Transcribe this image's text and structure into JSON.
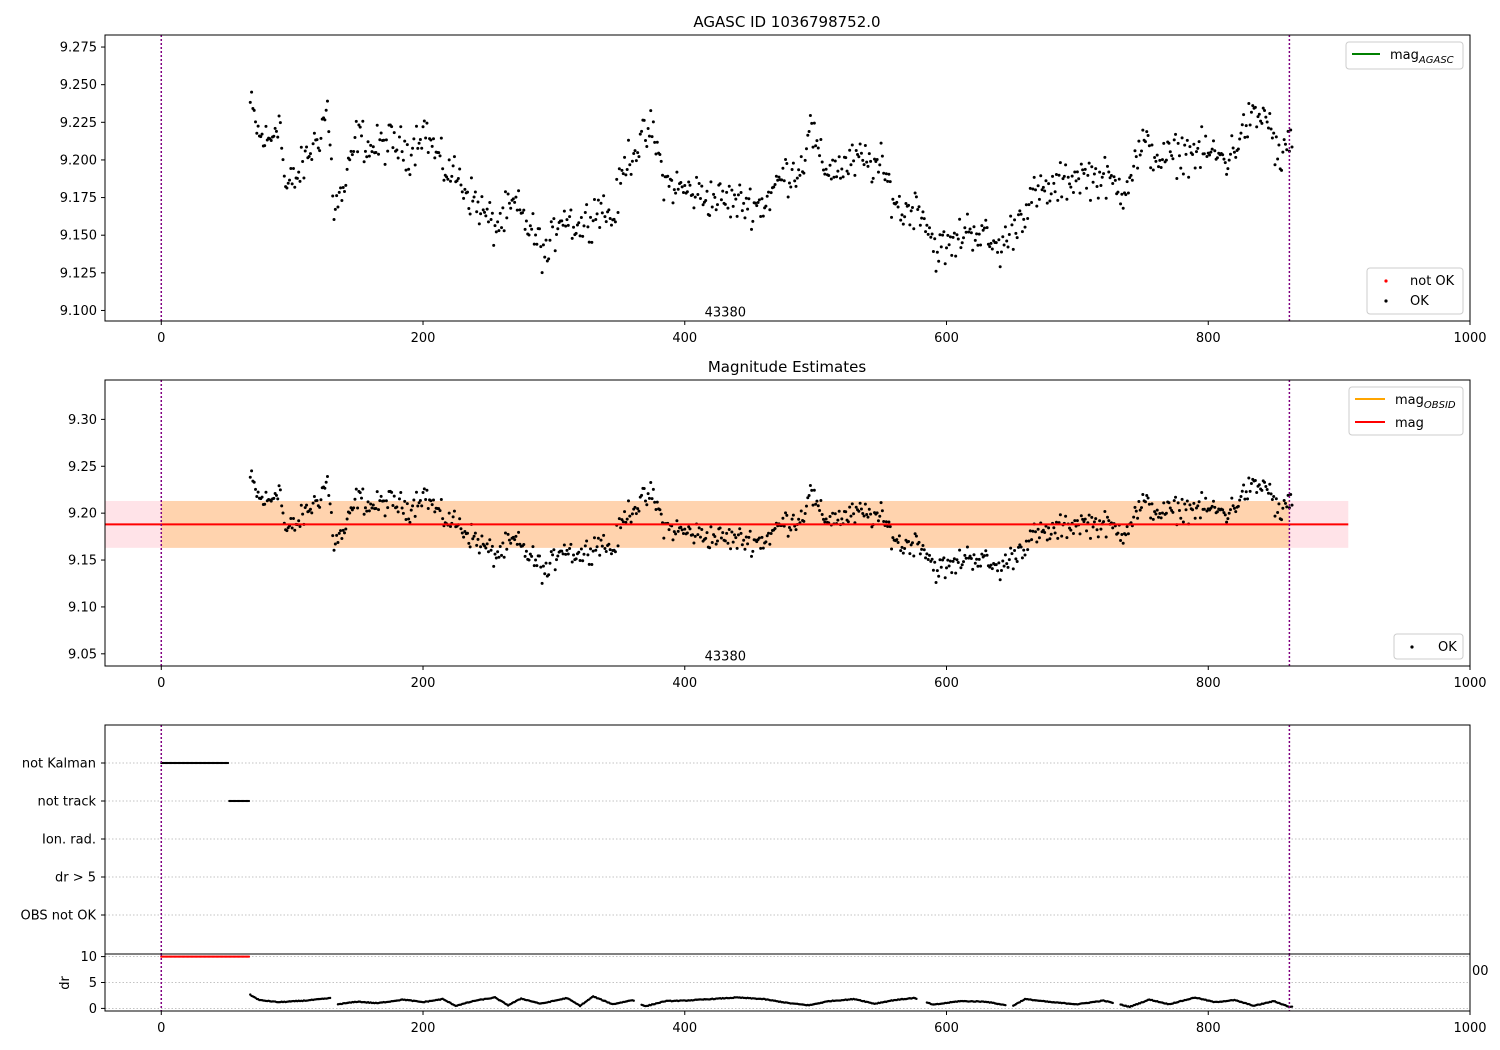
{
  "figure": {
    "background": "#ffffff"
  },
  "chart_data": [
    {
      "type": "scatter",
      "title": "AGASC ID 1036798752.0",
      "xlim": [
        -43,
        1000
      ],
      "ylim": [
        9.093,
        9.283
      ],
      "xticks": [
        "0",
        "200",
        "400",
        "600",
        "800",
        "1000"
      ],
      "xtick_values": [
        0,
        200,
        400,
        600,
        800,
        1000
      ],
      "yticks": [
        "9.100",
        "9.125",
        "9.150",
        "9.175",
        "9.200",
        "9.225",
        "9.250",
        "9.275"
      ],
      "ytick_values": [
        9.1,
        9.125,
        9.15,
        9.175,
        9.2,
        9.225,
        9.25,
        9.275
      ],
      "vlines": [
        0,
        862
      ],
      "vline_color": "#800080",
      "annotation": {
        "text": "43380",
        "x": 431,
        "y": 9.096
      },
      "legend_lines": [
        {
          "label": "mag",
          "sub": "AGASC",
          "color": "#008000"
        }
      ],
      "legend_points": [
        {
          "label": "not OK",
          "color": "#ff0000"
        },
        {
          "label": "OK",
          "color": "#000000"
        }
      ],
      "series_ok": {
        "name": "OK",
        "color": "#000000",
        "knots": [
          [
            68,
            9.237
          ],
          [
            75,
            9.215
          ],
          [
            83,
            9.212
          ],
          [
            90,
            9.23
          ],
          [
            95,
            9.18
          ],
          [
            105,
            9.19
          ],
          [
            112,
            9.203
          ],
          [
            120,
            9.215
          ],
          [
            127,
            9.235
          ],
          [
            132,
            9.168
          ],
          [
            140,
            9.18
          ],
          [
            150,
            9.218
          ],
          [
            160,
            9.207
          ],
          [
            175,
            9.212
          ],
          [
            190,
            9.205
          ],
          [
            200,
            9.222
          ],
          [
            215,
            9.195
          ],
          [
            225,
            9.19
          ],
          [
            240,
            9.172
          ],
          [
            255,
            9.155
          ],
          [
            270,
            9.17
          ],
          [
            285,
            9.15
          ],
          [
            295,
            9.135
          ],
          [
            305,
            9.165
          ],
          [
            320,
            9.155
          ],
          [
            335,
            9.17
          ],
          [
            345,
            9.16
          ],
          [
            355,
            9.2
          ],
          [
            365,
            9.21
          ],
          [
            375,
            9.22
          ],
          [
            385,
            9.185
          ],
          [
            400,
            9.18
          ],
          [
            420,
            9.175
          ],
          [
            440,
            9.172
          ],
          [
            460,
            9.17
          ],
          [
            475,
            9.19
          ],
          [
            490,
            9.195
          ],
          [
            495,
            9.225
          ],
          [
            505,
            9.195
          ],
          [
            520,
            9.195
          ],
          [
            535,
            9.2
          ],
          [
            550,
            9.195
          ],
          [
            565,
            9.165
          ],
          [
            580,
            9.17
          ],
          [
            592,
            9.14
          ],
          [
            605,
            9.143
          ],
          [
            615,
            9.155
          ],
          [
            625,
            9.152
          ],
          [
            640,
            9.14
          ],
          [
            655,
            9.16
          ],
          [
            665,
            9.175
          ],
          [
            680,
            9.18
          ],
          [
            700,
            9.19
          ],
          [
            720,
            9.188
          ],
          [
            735,
            9.18
          ],
          [
            750,
            9.21
          ],
          [
            765,
            9.2
          ],
          [
            780,
            9.205
          ],
          [
            800,
            9.205
          ],
          [
            815,
            9.2
          ],
          [
            830,
            9.225
          ],
          [
            845,
            9.23
          ],
          [
            855,
            9.195
          ],
          [
            862,
            9.215
          ]
        ],
        "spread": 0.012,
        "x_start": 68,
        "x_end": 864,
        "step": 1
      }
    },
    {
      "type": "scatter",
      "title": "Magnitude Estimates",
      "xlim": [
        -43,
        1000
      ],
      "ylim": [
        9.037,
        9.342
      ],
      "xticks": [
        "0",
        "200",
        "400",
        "600",
        "800",
        "1000"
      ],
      "xtick_values": [
        0,
        200,
        400,
        600,
        800,
        1000
      ],
      "yticks": [
        "9.05",
        "9.10",
        "9.15",
        "9.20",
        "9.25",
        "9.30"
      ],
      "ytick_values": [
        9.05,
        9.1,
        9.15,
        9.2,
        9.25,
        9.3
      ],
      "vlines": [
        0,
        862
      ],
      "vline_color": "#800080",
      "annotation": {
        "text": "43380",
        "x": 431,
        "y": 9.043
      },
      "mag_line": {
        "y": 9.188,
        "x": [
          -43,
          907
        ],
        "color": "#ff0000"
      },
      "bands": [
        {
          "x": [
            -43,
            907
          ],
          "y": [
            9.163,
            9.213
          ],
          "color": "#ffc0cb",
          "opacity": 0.45
        },
        {
          "x": [
            0,
            862
          ],
          "y": [
            9.163,
            9.213
          ],
          "color": "#ffa500",
          "opacity": 0.25
        }
      ],
      "legend_lines": [
        {
          "label": "mag",
          "sub": "OBSID",
          "color": "#ffa500"
        },
        {
          "label": "mag",
          "sub": "",
          "color": "#ff0000"
        }
      ],
      "legend_points": [
        {
          "label": "OK",
          "color": "#000000"
        }
      ],
      "series_ok": {
        "name": "OK",
        "color": "#000000",
        "same_as_panel": 0
      }
    },
    {
      "type": "scatter",
      "xlim": [
        -43,
        1000
      ],
      "categories": [
        "not Kalman",
        "not track",
        "Ion. rad.",
        "dr > 5",
        "OBS not OK"
      ],
      "grid": true,
      "vlines": [
        0,
        862
      ],
      "vline_color": "#800080",
      "flags": [
        {
          "category": "not Kalman",
          "x": [
            0,
            51
          ],
          "color": "#000000"
        },
        {
          "category": "not track",
          "x": [
            52,
            67
          ],
          "color": "#000000"
        }
      ]
    },
    {
      "type": "scatter",
      "ylabel": "dr",
      "xlim": [
        -43,
        1000
      ],
      "ylim": [
        -0.5,
        10.5
      ],
      "xticks": [
        "0",
        "200",
        "400",
        "600",
        "800",
        "1000"
      ],
      "xtick_values": [
        0,
        200,
        400,
        600,
        800,
        1000
      ],
      "yticks": [
        "0",
        "5",
        "10"
      ],
      "ytick_values": [
        0,
        5,
        10
      ],
      "vlines": [
        0,
        862
      ],
      "vline_color": "#800080",
      "stray_tick": "00",
      "series_capped": {
        "name": "dr capped",
        "color": "#ff0000",
        "value": 10,
        "x": [
          0,
          67
        ]
      },
      "series_dr": {
        "name": "dr",
        "color": "#000000",
        "knots": [
          [
            68,
            2.6
          ],
          [
            75,
            1.6
          ],
          [
            90,
            1.2
          ],
          [
            110,
            1.5
          ],
          [
            130,
            2.0
          ],
          [
            135,
            0.8
          ],
          [
            150,
            1.3
          ],
          [
            165,
            1.0
          ],
          [
            185,
            1.7
          ],
          [
            200,
            1.2
          ],
          [
            215,
            1.8
          ],
          [
            225,
            0.5
          ],
          [
            240,
            1.5
          ],
          [
            255,
            2.1
          ],
          [
            265,
            0.6
          ],
          [
            275,
            1.9
          ],
          [
            290,
            0.9
          ],
          [
            310,
            2.0
          ],
          [
            320,
            0.5
          ],
          [
            330,
            2.3
          ],
          [
            345,
            0.8
          ],
          [
            360,
            1.6
          ],
          [
            370,
            0.4
          ],
          [
            385,
            1.4
          ],
          [
            400,
            1.5
          ],
          [
            420,
            1.8
          ],
          [
            440,
            2.1
          ],
          [
            460,
            1.8
          ],
          [
            480,
            1.0
          ],
          [
            495,
            0.6
          ],
          [
            510,
            1.4
          ],
          [
            530,
            1.8
          ],
          [
            545,
            0.9
          ],
          [
            560,
            1.6
          ],
          [
            575,
            2.0
          ],
          [
            590,
            0.7
          ],
          [
            610,
            1.4
          ],
          [
            630,
            1.3
          ],
          [
            650,
            0.4
          ],
          [
            660,
            1.8
          ],
          [
            680,
            1.2
          ],
          [
            700,
            0.8
          ],
          [
            720,
            1.5
          ],
          [
            740,
            0.3
          ],
          [
            755,
            1.7
          ],
          [
            770,
            0.8
          ],
          [
            790,
            2.1
          ],
          [
            805,
            1.2
          ],
          [
            820,
            1.6
          ],
          [
            835,
            0.5
          ],
          [
            850,
            1.4
          ],
          [
            862,
            0.3
          ]
        ],
        "gaps": [
          [
            130,
            134
          ],
          [
            362,
            366
          ],
          [
            578,
            584
          ],
          [
            646,
            650
          ],
          [
            728,
            732
          ]
        ],
        "spread": 0.12,
        "x_start": 68,
        "x_end": 864,
        "step": 1
      }
    }
  ]
}
